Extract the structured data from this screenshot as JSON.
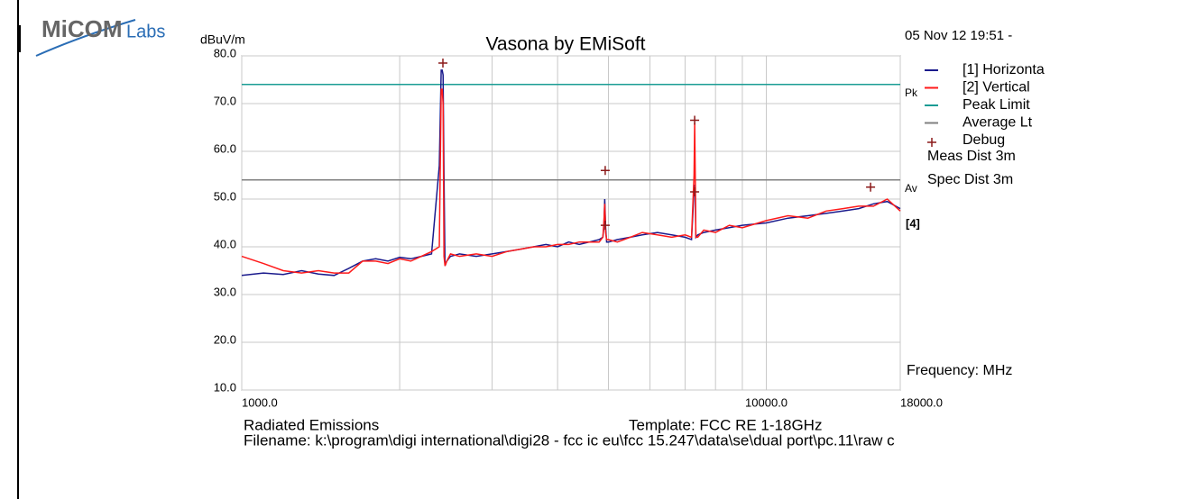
{
  "logo": {
    "main": "MiCOM",
    "sub": "Labs"
  },
  "header": {
    "date": "05 Nov 12 19:51 -"
  },
  "chart_data": {
    "type": "line",
    "title": "Vasona by EMiSoft",
    "y_label": "dBuV/m",
    "x_label": "Frequency: MHz",
    "log_x": true,
    "grid": true,
    "xlim": [
      1000,
      18000
    ],
    "ylim": [
      10,
      80
    ],
    "xticks": [
      {
        "value": 1000,
        "label": "1000.0"
      },
      {
        "value": 10000,
        "label": "10000.0"
      },
      {
        "value": 18000,
        "label": "18000.0"
      }
    ],
    "xgrid": [
      2000,
      3000,
      4000,
      5000,
      6000,
      7000,
      8000,
      9000
    ],
    "yticks": [
      {
        "value": 10,
        "label": "10.0"
      },
      {
        "value": 20,
        "label": "20.0"
      },
      {
        "value": 30,
        "label": "30.0"
      },
      {
        "value": 40,
        "label": "40.0"
      },
      {
        "value": 50,
        "label": "50.0"
      },
      {
        "value": 60,
        "label": "60.0"
      },
      {
        "value": 70,
        "label": "70.0"
      },
      {
        "value": 80,
        "label": "80.0"
      }
    ],
    "x": [
      1000,
      1100,
      1200,
      1300,
      1400,
      1500,
      1600,
      1700,
      1800,
      1900,
      2000,
      2100,
      2200,
      2300,
      2380,
      2400,
      2410,
      2420,
      2430,
      2440,
      2460,
      2500,
      2600,
      2800,
      3000,
      3200,
      3400,
      3600,
      3800,
      4000,
      4200,
      4400,
      4600,
      4800,
      4880,
      4900,
      4920,
      4940,
      4960,
      5000,
      5200,
      5500,
      5800,
      6200,
      6600,
      7000,
      7200,
      7280,
      7300,
      7320,
      7340,
      7400,
      7600,
      8000,
      8500,
      9000,
      10000,
      11000,
      12000,
      13000,
      14000,
      15000,
      16000,
      17000,
      18000
    ],
    "series": [
      {
        "name": "[1] Horizonta",
        "color": "#1a1a8c",
        "values": [
          34,
          34.5,
          34.2,
          35,
          34.3,
          34,
          35.5,
          37,
          37.5,
          37,
          37.8,
          37.5,
          38,
          38.5,
          57,
          77,
          77,
          76,
          55,
          36,
          37,
          38,
          38.5,
          38,
          38.5,
          39,
          39.5,
          40,
          40.5,
          40,
          41,
          40.5,
          41,
          41.5,
          42,
          44,
          50,
          44,
          41,
          41,
          41.5,
          42,
          42.5,
          43,
          42.5,
          42,
          41.5,
          52,
          53,
          51,
          42,
          42.5,
          43,
          43.5,
          44,
          44.5,
          45,
          46,
          46.5,
          47,
          47.5,
          48,
          49,
          49.5,
          48
        ]
      },
      {
        "name": "[2] Vertical",
        "color": "#ff1a1a",
        "values": [
          38,
          36.5,
          35,
          34.5,
          35,
          34.5,
          34.5,
          37,
          37,
          36.5,
          37.5,
          37,
          38,
          39,
          40,
          73,
          73,
          70,
          38,
          36,
          37,
          38.5,
          38,
          38.5,
          38,
          39,
          39.5,
          40,
          40,
          40.5,
          40.5,
          41,
          41,
          41,
          42,
          45,
          49,
          43,
          41.5,
          41.5,
          41,
          42,
          43,
          42.5,
          42,
          42.5,
          42,
          55,
          66,
          54,
          42,
          42,
          43.5,
          43,
          44.5,
          44,
          45.5,
          46.5,
          46,
          47.5,
          48,
          48.5,
          48.5,
          50,
          47.5
        ]
      }
    ],
    "limits": [
      {
        "name": "Peak Limit",
        "color": "#1a9c94",
        "value": 74,
        "tag": "Pk"
      },
      {
        "name": "Average Lt",
        "color": "#808080",
        "value": 54,
        "tag": "Av"
      }
    ],
    "markers": {
      "name": "Debug",
      "color": "#8b1a1a",
      "x": [
        2418,
        4930,
        4930,
        7300,
        7300,
        15800
      ],
      "y": [
        78.5,
        56,
        44.5,
        66.5,
        51.5,
        52.5
      ]
    },
    "side_tag": "[4]",
    "notes": [
      "Meas Dist 3m",
      "Spec Dist 3m"
    ]
  },
  "footer": {
    "left": "Radiated Emissions",
    "template": "Template: FCC RE 1-18GHz",
    "filename": "Filename: k:\\program\\digi international\\digi28 - fcc ic eu\\fcc 15.247\\data\\se\\dual port\\pc.11\\raw c"
  }
}
